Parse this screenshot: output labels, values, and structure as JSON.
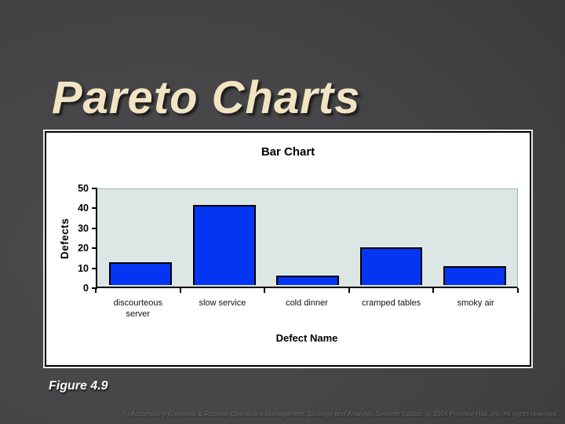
{
  "slide": {
    "title": "Pareto Charts",
    "figure_caption": "Figure 4.9",
    "footer": {
      "prefix": "To Accompany Krajewski & Ritzman ",
      "book_title": "Operations Management: Strategy and Analysis, Seventh Edition.",
      "suffix": " © 2004 Prentice Hall, Inc. All rights reserved."
    }
  },
  "chart_data": {
    "type": "bar",
    "title": "Bar Chart",
    "categories": [
      "discourteous server",
      "slow service",
      "cold dinner",
      "cramped tables",
      "smoky air"
    ],
    "values": [
      12,
      42,
      5,
      20,
      10
    ],
    "xlabel": "Defect Name",
    "ylabel": "Defects",
    "ylim": [
      0,
      50
    ],
    "yticks": [
      0,
      10,
      20,
      30,
      40,
      50
    ],
    "grid": false,
    "legend_position": "none",
    "bar_color": "#0435F2",
    "bar_border_color": "#000000",
    "plot_bg_color": "#DCE7E5"
  }
}
